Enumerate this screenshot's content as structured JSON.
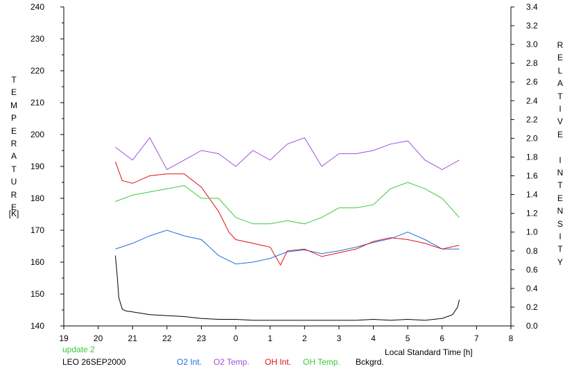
{
  "chart_data": {
    "type": "line",
    "xlabel": "Local Standard Time [h]",
    "x_tick_labels": [
      "19",
      "20",
      "21",
      "22",
      "23",
      "0",
      "1",
      "2",
      "3",
      "4",
      "5",
      "6",
      "7",
      "8"
    ],
    "x_range": [
      "19:00",
      "08:00"
    ],
    "y_left": {
      "label_letters": [
        "T",
        "E",
        "M",
        "P",
        "E",
        "R",
        "A",
        "T",
        "U",
        "R",
        "E"
      ],
      "unit": "[K]",
      "ticks": [
        140,
        150,
        160,
        170,
        180,
        190,
        200,
        210,
        220,
        230,
        240
      ],
      "ylim": [
        140,
        240
      ]
    },
    "y_right": {
      "label_letters": [
        "R",
        "E",
        "L",
        "A",
        "T",
        "I",
        "V",
        "E",
        "",
        "I",
        "N",
        "T",
        "E",
        "N",
        "S",
        "I",
        "T",
        "Y"
      ],
      "ticks": [
        "0.0",
        "0.2",
        "0.4",
        "0.6",
        "0.8",
        "1.0",
        "1.2",
        "1.4",
        "1.6",
        "1.8",
        "2.0",
        "2.2",
        "2.4",
        "2.6",
        "2.8",
        "3.0",
        "3.2",
        "3.4"
      ],
      "ylim": [
        0.0,
        3.4
      ]
    },
    "grid": false,
    "series": [
      {
        "name": "O2 Int.",
        "axis": "right",
        "color": "#1e6ee0",
        "x": [
          20.5,
          21,
          21.5,
          22,
          22.5,
          23,
          23.5,
          0,
          0.5,
          1,
          1.5,
          2,
          2.5,
          3,
          3.5,
          4,
          4.5,
          5,
          5.5,
          6,
          6.5
        ],
        "y": [
          0.82,
          0.88,
          0.96,
          1.02,
          0.96,
          0.92,
          0.75,
          0.66,
          0.68,
          0.72,
          0.79,
          0.81,
          0.77,
          0.8,
          0.84,
          0.89,
          0.93,
          1.0,
          0.92,
          0.82,
          0.82
        ]
      },
      {
        "name": "O2 Temp.",
        "axis": "left",
        "color": "#a050d8",
        "x": [
          20.5,
          21,
          21.5,
          22,
          22.5,
          23,
          23.5,
          0,
          0.5,
          1,
          1.5,
          2,
          2.5,
          3,
          3.5,
          4,
          4.5,
          5,
          5.5,
          6,
          6.5
        ],
        "y": [
          196,
          192,
          199,
          189,
          192,
          195,
          194,
          190,
          195,
          192,
          197,
          199,
          190,
          194,
          194,
          195,
          197,
          198,
          192,
          189,
          192
        ]
      },
      {
        "name": "OH Int.",
        "axis": "right",
        "color": "#e01010",
        "x": [
          20.5,
          20.7,
          21,
          21.5,
          22,
          22.5,
          23,
          23.5,
          23.8,
          0,
          0.5,
          1,
          1.3,
          1.5,
          2,
          2.5,
          3,
          3.5,
          4,
          4.5,
          5,
          5.5,
          6,
          6.5
        ],
        "y": [
          1.75,
          1.55,
          1.52,
          1.6,
          1.62,
          1.62,
          1.48,
          1.22,
          1.0,
          0.92,
          0.88,
          0.84,
          0.65,
          0.8,
          0.82,
          0.74,
          0.78,
          0.82,
          0.9,
          0.94,
          0.92,
          0.88,
          0.82,
          0.86
        ]
      },
      {
        "name": "OH Temp.",
        "axis": "left",
        "color": "#3cc83c",
        "x": [
          20.5,
          21,
          21.5,
          22,
          22.5,
          23,
          23.5,
          0,
          0.5,
          1,
          1.5,
          2,
          2.5,
          3,
          3.5,
          4,
          4.5,
          5,
          5.5,
          6,
          6.5
        ],
        "y": [
          179,
          181,
          182,
          183,
          184,
          180,
          180,
          174,
          172,
          172,
          173,
          172,
          174,
          177,
          177,
          178,
          183,
          185,
          183,
          180,
          174
        ]
      },
      {
        "name": "Bckgrd.",
        "axis": "right",
        "color": "#000000",
        "x": [
          20.5,
          20.55,
          20.6,
          20.7,
          20.8,
          21,
          21.5,
          22,
          22.5,
          23,
          23.5,
          0,
          0.5,
          1,
          1.5,
          2,
          2.5,
          3,
          3.5,
          4,
          4.5,
          5,
          5.5,
          6,
          6.3,
          6.45,
          6.5
        ],
        "y": [
          0.75,
          0.55,
          0.3,
          0.18,
          0.16,
          0.15,
          0.12,
          0.11,
          0.1,
          0.08,
          0.07,
          0.07,
          0.06,
          0.06,
          0.06,
          0.06,
          0.06,
          0.06,
          0.06,
          0.07,
          0.06,
          0.07,
          0.06,
          0.08,
          0.12,
          0.2,
          0.28
        ]
      }
    ]
  },
  "footer": {
    "update_label": "update 2",
    "station_date": "LEO 26SEP2000"
  }
}
